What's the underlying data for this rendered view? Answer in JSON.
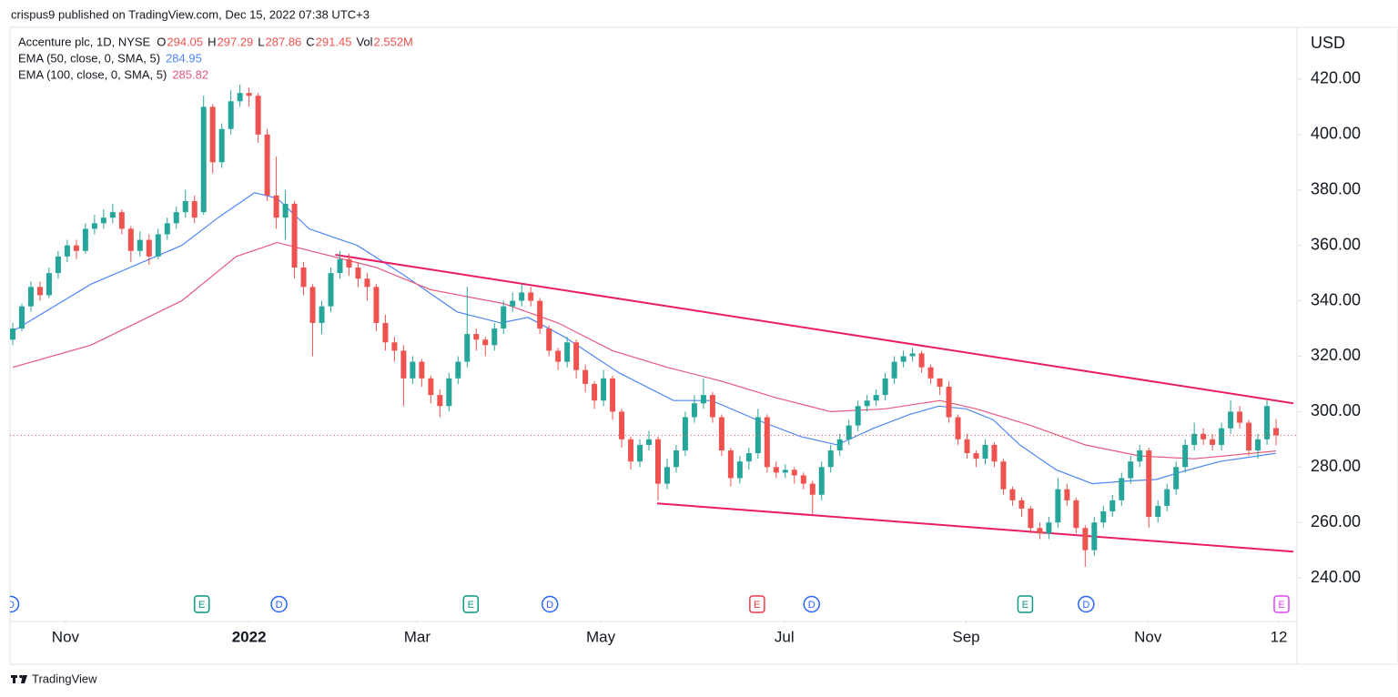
{
  "header": "crispus9 published on TradingView.com, Dec 15, 2022 07:38 UTC+3",
  "footer": "TradingView",
  "chart_data": {
    "type": "candlestick",
    "symbol": "Accenture plc, 1D, NYSE",
    "ohlc_labels": [
      "O",
      "H",
      "L",
      "C",
      "Vol"
    ],
    "volume": "2.552M",
    "currency": "USD",
    "up_color": "#26a69a",
    "down_color": "#ef5350",
    "xlim": [
      -0.2,
      141.3
    ],
    "ylim": [
      224.6,
      438.7
    ],
    "yticks": [
      {
        "value": 240,
        "label": "240.00"
      },
      {
        "value": 260,
        "label": "260.00"
      },
      {
        "value": 280,
        "label": "280.00"
      },
      {
        "value": 300,
        "label": "300.00"
      },
      {
        "value": 320,
        "label": "320.00"
      },
      {
        "value": 340,
        "label": "340.00"
      },
      {
        "value": 360,
        "label": "360.00"
      },
      {
        "value": 380,
        "label": "380.00"
      },
      {
        "value": 400,
        "label": "400.00"
      },
      {
        "value": 420,
        "label": "420.00"
      }
    ],
    "xticks": [
      {
        "value": 5.8,
        "label": "Nov"
      },
      {
        "value": 26,
        "label": "2022"
      },
      {
        "value": 44.5,
        "label": "Mar"
      },
      {
        "value": 64.7,
        "label": "May"
      },
      {
        "value": 84.9,
        "label": "Jul"
      },
      {
        "value": 104.9,
        "label": "Sep"
      },
      {
        "value": 124.9,
        "label": "Nov"
      },
      {
        "value": 139.3,
        "label": "12"
      }
    ],
    "grid": false,
    "candles": [
      [
        326,
        332,
        324,
        330
      ],
      [
        330,
        339,
        329,
        338
      ],
      [
        338,
        347,
        336,
        345
      ],
      [
        345,
        347,
        340,
        342
      ],
      [
        342,
        352,
        341,
        350
      ],
      [
        350,
        358,
        348,
        356
      ],
      [
        356,
        362,
        354,
        360
      ],
      [
        360,
        362,
        355,
        358
      ],
      [
        358,
        368,
        357,
        366
      ],
      [
        366,
        371,
        364,
        368
      ],
      [
        368,
        373,
        366,
        370
      ],
      [
        370,
        375,
        368,
        372
      ],
      [
        372,
        373,
        364,
        366
      ],
      [
        366,
        367,
        354,
        358
      ],
      [
        358,
        365,
        356,
        362
      ],
      [
        362,
        364,
        353,
        356
      ],
      [
        356,
        366,
        355,
        364
      ],
      [
        364,
        370,
        362,
        368
      ],
      [
        368,
        374,
        366,
        372
      ],
      [
        372,
        380,
        370,
        376
      ],
      [
        376,
        378,
        368,
        370
      ],
      [
        372,
        414,
        371,
        410
      ],
      [
        410,
        411,
        386,
        390
      ],
      [
        390,
        404,
        388,
        402
      ],
      [
        402,
        416,
        400,
        412
      ],
      [
        412,
        418,
        410,
        415
      ],
      [
        415,
        417,
        410,
        414
      ],
      [
        414,
        415,
        397,
        400
      ],
      [
        400,
        402,
        376,
        378
      ],
      [
        378,
        392,
        366,
        370
      ],
      [
        370,
        380,
        362,
        375
      ],
      [
        375,
        376,
        348,
        352
      ],
      [
        352,
        354,
        342,
        345
      ],
      [
        345,
        346,
        320,
        332
      ],
      [
        332,
        340,
        328,
        338
      ],
      [
        338,
        352,
        336,
        350
      ],
      [
        350,
        358,
        348,
        355
      ],
      [
        355,
        357,
        349,
        352
      ],
      [
        352,
        354,
        345,
        348
      ],
      [
        348,
        350,
        340,
        345
      ],
      [
        345,
        346,
        329,
        332
      ],
      [
        332,
        335,
        322,
        325
      ],
      [
        325,
        327,
        318,
        322
      ],
      [
        322,
        324,
        302,
        312
      ],
      [
        312,
        320,
        310,
        318
      ],
      [
        318,
        319,
        309,
        312
      ],
      [
        312,
        313,
        303,
        306
      ],
      [
        306,
        308,
        298,
        302
      ],
      [
        302,
        314,
        300,
        312
      ],
      [
        312,
        320,
        310,
        318
      ],
      [
        318,
        345,
        316,
        328
      ],
      [
        328,
        330,
        322,
        326
      ],
      [
        326,
        327,
        320,
        324
      ],
      [
        324,
        332,
        322,
        330
      ],
      [
        330,
        340,
        328,
        338
      ],
      [
        338,
        343,
        336,
        340
      ],
      [
        340,
        346,
        338,
        343
      ],
      [
        343,
        345,
        338,
        340
      ],
      [
        340,
        341,
        328,
        330
      ],
      [
        330,
        331,
        320,
        322
      ],
      [
        322,
        323,
        315,
        318
      ],
      [
        318,
        327,
        316,
        325
      ],
      [
        325,
        326,
        312,
        315
      ],
      [
        315,
        317,
        307,
        310
      ],
      [
        310,
        311,
        301,
        304
      ],
      [
        304,
        315,
        302,
        312
      ],
      [
        312,
        313,
        297,
        300
      ],
      [
        300,
        301,
        287,
        290
      ],
      [
        290,
        291,
        279,
        282
      ],
      [
        282,
        290,
        280,
        288
      ],
      [
        288,
        293,
        286,
        290
      ],
      [
        290,
        291,
        268,
        274
      ],
      [
        274,
        283,
        272,
        280
      ],
      [
        280,
        288,
        278,
        286
      ],
      [
        286,
        300,
        284,
        298
      ],
      [
        298,
        306,
        296,
        303
      ],
      [
        303,
        312,
        301,
        306
      ],
      [
        306,
        307,
        296,
        298
      ],
      [
        298,
        299,
        284,
        286
      ],
      [
        286,
        287,
        273,
        276
      ],
      [
        276,
        284,
        274,
        282
      ],
      [
        282,
        287,
        279,
        285
      ],
      [
        285,
        301,
        283,
        298
      ],
      [
        298,
        299,
        278,
        280
      ],
      [
        280,
        282,
        276,
        278
      ],
      [
        278,
        281,
        276,
        279
      ],
      [
        279,
        280,
        274,
        277
      ],
      [
        277,
        278,
        272,
        274
      ],
      [
        274,
        275,
        263,
        270
      ],
      [
        270,
        282,
        268,
        280
      ],
      [
        280,
        288,
        278,
        286
      ],
      [
        286,
        292,
        284,
        290
      ],
      [
        290,
        297,
        288,
        295
      ],
      [
        295,
        304,
        293,
        302
      ],
      [
        302,
        306,
        300,
        304
      ],
      [
        304,
        308,
        302,
        306
      ],
      [
        306,
        314,
        304,
        312
      ],
      [
        312,
        320,
        310,
        318
      ],
      [
        318,
        322,
        316,
        320
      ],
      [
        320,
        323,
        318,
        321
      ],
      [
        321,
        322,
        314,
        316
      ],
      [
        316,
        317,
        310,
        312
      ],
      [
        312,
        312,
        306,
        309
      ],
      [
        309,
        311,
        296,
        298
      ],
      [
        298,
        299,
        288,
        290
      ],
      [
        290,
        292,
        283,
        285
      ],
      [
        285,
        286,
        280,
        283
      ],
      [
        283,
        290,
        281,
        288
      ],
      [
        288,
        289,
        280,
        282
      ],
      [
        282,
        283,
        270,
        272
      ],
      [
        272,
        273,
        266,
        268
      ],
      [
        268,
        269,
        262,
        265
      ],
      [
        265,
        266,
        256,
        258
      ],
      [
        258,
        260,
        254,
        256
      ],
      [
        256,
        262,
        254,
        260
      ],
      [
        260,
        276,
        258,
        272
      ],
      [
        272,
        274,
        266,
        268
      ],
      [
        268,
        269,
        256,
        258
      ],
      [
        258,
        259,
        244,
        250
      ],
      [
        250,
        262,
        248,
        260
      ],
      [
        260,
        266,
        258,
        264
      ],
      [
        264,
        270,
        262,
        268
      ],
      [
        268,
        278,
        266,
        276
      ],
      [
        276,
        284,
        274,
        282
      ],
      [
        282,
        288,
        280,
        286
      ],
      [
        286,
        287,
        258,
        262
      ],
      [
        262,
        268,
        260,
        266
      ],
      [
        266,
        274,
        264,
        272
      ],
      [
        272,
        282,
        270,
        280
      ],
      [
        280,
        290,
        278,
        288
      ],
      [
        288,
        296,
        286,
        292
      ],
      [
        292,
        294,
        288,
        290
      ],
      [
        290,
        292,
        286,
        288
      ],
      [
        288,
        296,
        286,
        294
      ],
      [
        294,
        304,
        292,
        300
      ],
      [
        300,
        302,
        294,
        296
      ],
      [
        296,
        297,
        284,
        286
      ],
      [
        286,
        292,
        283,
        290
      ],
      [
        290,
        304,
        288,
        302
      ],
      [
        294.05,
        297.29,
        287.86,
        291.45
      ]
    ],
    "series": [
      {
        "name": "EMA (50, close, 0, SMA, 5)",
        "color": "#4f86f7",
        "x": [
          0,
          8.6,
          18.6,
          22.6,
          26.6,
          29.1,
          32.6,
          37.9,
          42.7,
          48.9,
          53.7,
          56.7,
          60.7,
          66.7,
          72.7,
          76.9,
          81.9,
          86.7,
          90.7,
          94.7,
          98.7,
          101.9,
          104.9,
          107.9,
          110.8,
          114.8,
          118.8,
          122.8,
          125.8,
          128.8,
          132.8,
          139
        ],
        "values": [
          329,
          346,
          360,
          370,
          379,
          377,
          366,
          360,
          350,
          336,
          332,
          334,
          327,
          314,
          304,
          304,
          297,
          291,
          288,
          294,
          299,
          302,
          301,
          297,
          288,
          279,
          274,
          275,
          275.5,
          278.5,
          282,
          284.95
        ]
      },
      {
        "name": "EMA (100, close, 0, SMA, 5)",
        "color": "#e8577c",
        "x": [
          0,
          8.6,
          18.6,
          24.6,
          29.1,
          34,
          40,
          46,
          54,
          60,
          66,
          72,
          78,
          84,
          90,
          96,
          102,
          106,
          112,
          118,
          124,
          130,
          139
        ],
        "values": [
          316,
          324,
          340,
          356,
          361,
          357,
          352,
          344,
          339,
          332,
          322,
          316,
          311,
          305,
          300,
          301,
          304,
          301,
          295,
          288,
          284,
          283,
          285.82
        ]
      }
    ],
    "trendlines": [
      {
        "color": "#e91e63",
        "x": [
          35.5,
          140.9
        ],
        "values": [
          356.6,
          303
        ]
      },
      {
        "color": "#e91e63",
        "x": [
          70.9,
          140.9
        ],
        "values": [
          266.9,
          249.5
        ]
      }
    ],
    "events": [
      {
        "x": -0.2,
        "label": "D",
        "shape": "circle",
        "color": "#2962ff"
      },
      {
        "x": 20.8,
        "label": "E",
        "shape": "square",
        "color": "#089981"
      },
      {
        "x": 29.3,
        "label": "D",
        "shape": "circle",
        "color": "#2962ff"
      },
      {
        "x": 50.4,
        "label": "E",
        "shape": "square",
        "color": "#089981"
      },
      {
        "x": 59.1,
        "label": "D",
        "shape": "circle",
        "color": "#2962ff"
      },
      {
        "x": 81.9,
        "label": "E",
        "shape": "square",
        "color": "#f23645"
      },
      {
        "x": 87.9,
        "label": "D",
        "shape": "circle",
        "color": "#2962ff"
      },
      {
        "x": 111.4,
        "label": "E",
        "shape": "square",
        "color": "#089981"
      },
      {
        "x": 118.1,
        "label": "D",
        "shape": "circle",
        "color": "#2962ff"
      },
      {
        "x": 139.6,
        "label": "E",
        "shape": "square",
        "color": "#e040fb"
      }
    ]
  }
}
